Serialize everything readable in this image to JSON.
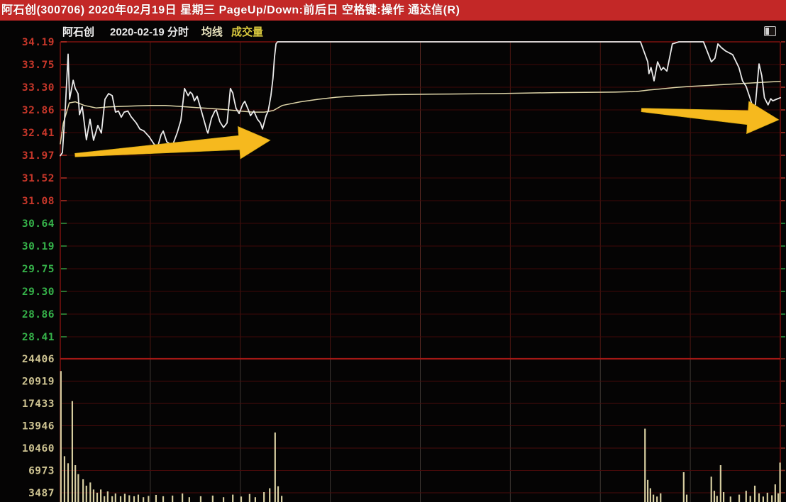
{
  "topbar": {
    "text": "阿石创(300706) 2020年02月19日 星期三 PageUp/Down:前后日 空格键:操作 通达信(R)",
    "bg_color": "#c32827"
  },
  "header": {
    "stock_name": "阿石创",
    "date_and_type": "2020-02-19 分时",
    "indicator_ma": "均线",
    "indicator_vol": "成交量"
  },
  "chart_data": {
    "type": "line",
    "title": "阿石创(300706) 2020-02-19 分时走势",
    "grid": true,
    "x_axis": {
      "minutes_total": 240,
      "gridline_every_minutes": 30
    },
    "price_axis": {
      "ticks": [
        "34.19",
        "33.75",
        "33.30",
        "32.86",
        "32.41",
        "31.97",
        "31.52",
        "31.08",
        "30.64",
        "30.19",
        "29.75",
        "29.30",
        "28.86",
        "28.41"
      ],
      "top_value": 34.19,
      "step": 0.4425,
      "prev_close": 31.08,
      "limit_up": 34.19,
      "color_above": "#c8372a",
      "color_close": "#e6e6e6",
      "color_below": "#36b34a"
    },
    "volume_axis": {
      "ticks": [
        24406,
        20919,
        17433,
        13946,
        10460,
        6973,
        3487
      ],
      "label_color": "#cfc492"
    },
    "series": [
      {
        "name": "price",
        "color": "#eaeaea",
        "points": [
          [
            0,
            31.97
          ],
          [
            0.7,
            32.03
          ],
          [
            1.7,
            32.93
          ],
          [
            2.6,
            33.95
          ],
          [
            3.1,
            33.07
          ],
          [
            4.3,
            33.44
          ],
          [
            5,
            33.28
          ],
          [
            5.9,
            33.18
          ],
          [
            6.4,
            32.77
          ],
          [
            7.3,
            32.93
          ],
          [
            8.7,
            32.28
          ],
          [
            9.9,
            32.68
          ],
          [
            11.1,
            32.27
          ],
          [
            12.5,
            32.56
          ],
          [
            13.7,
            32.41
          ],
          [
            14.9,
            33.07
          ],
          [
            16.1,
            33.18
          ],
          [
            17.3,
            33.14
          ],
          [
            18.4,
            32.82
          ],
          [
            19.4,
            32.84
          ],
          [
            20.3,
            32.72
          ],
          [
            21.3,
            32.82
          ],
          [
            22.5,
            32.84
          ],
          [
            23.6,
            32.73
          ],
          [
            25.3,
            32.61
          ],
          [
            26.5,
            32.49
          ],
          [
            27.9,
            32.45
          ],
          [
            29.6,
            32.34
          ],
          [
            31.2,
            32.2
          ],
          [
            32.4,
            32.13
          ],
          [
            33.6,
            32.38
          ],
          [
            34.3,
            32.45
          ],
          [
            35.5,
            32.24
          ],
          [
            36.6,
            32.2
          ],
          [
            37.4,
            32.17
          ],
          [
            39,
            32.42
          ],
          [
            40.2,
            32.66
          ],
          [
            41.4,
            33.28
          ],
          [
            42.6,
            33.14
          ],
          [
            43.3,
            33.21
          ],
          [
            44,
            33.17
          ],
          [
            44.7,
            33.04
          ],
          [
            45.6,
            33.13
          ],
          [
            46.8,
            32.89
          ],
          [
            47.8,
            32.68
          ],
          [
            48.9,
            32.45
          ],
          [
            49.2,
            32.41
          ],
          [
            50.4,
            32.7
          ],
          [
            51.5,
            32.84
          ],
          [
            52,
            32.86
          ],
          [
            53.2,
            32.63
          ],
          [
            54.4,
            32.52
          ],
          [
            55.6,
            32.61
          ],
          [
            56.3,
            33.03
          ],
          [
            56.7,
            33.28
          ],
          [
            57.5,
            33.19
          ],
          [
            57.9,
            33.07
          ],
          [
            58.6,
            32.89
          ],
          [
            59.6,
            32.79
          ],
          [
            60.8,
            32.97
          ],
          [
            61.5,
            33.03
          ],
          [
            62.7,
            32.86
          ],
          [
            63.4,
            32.75
          ],
          [
            64.5,
            32.84
          ],
          [
            65.7,
            32.68
          ],
          [
            66.7,
            32.61
          ],
          [
            67.4,
            32.49
          ],
          [
            68.6,
            32.75
          ],
          [
            69.3,
            32.84
          ],
          [
            70.2,
            33.14
          ],
          [
            70.9,
            33.48
          ],
          [
            71.4,
            33.9
          ],
          [
            71.9,
            34.15
          ],
          [
            72.4,
            34.19
          ],
          [
            193.4,
            34.19
          ],
          [
            195.8,
            33.8
          ],
          [
            196.2,
            33.57
          ],
          [
            196.9,
            33.69
          ],
          [
            197.9,
            33.43
          ],
          [
            199.1,
            33.8
          ],
          [
            200.3,
            33.64
          ],
          [
            201,
            33.69
          ],
          [
            202.2,
            33.62
          ],
          [
            203.3,
            33.94
          ],
          [
            204,
            34.15
          ],
          [
            206.2,
            34.19
          ],
          [
            214.4,
            34.19
          ],
          [
            215.6,
            34.01
          ],
          [
            217,
            33.8
          ],
          [
            218.2,
            33.87
          ],
          [
            219.2,
            34.15
          ],
          [
            220.3,
            34.08
          ],
          [
            221.8,
            34.01
          ],
          [
            224.1,
            33.94
          ],
          [
            226.2,
            33.69
          ],
          [
            227.4,
            33.43
          ],
          [
            228.6,
            33.32
          ],
          [
            229.8,
            33.11
          ],
          [
            231,
            32.89
          ],
          [
            231.7,
            32.97
          ],
          [
            232.9,
            33.76
          ],
          [
            233.8,
            33.53
          ],
          [
            234.7,
            33.1
          ],
          [
            235.9,
            32.96
          ],
          [
            236.8,
            33.08
          ],
          [
            237.5,
            33.04
          ],
          [
            238.7,
            33.07
          ],
          [
            240,
            33.1
          ]
        ]
      },
      {
        "name": "avg_price_vwap",
        "color": "#ded5a8",
        "points": [
          [
            0,
            32.2
          ],
          [
            1,
            32.6
          ],
          [
            3,
            33
          ],
          [
            5,
            33.02
          ],
          [
            8,
            32.95
          ],
          [
            12,
            32.9
          ],
          [
            16,
            32.92
          ],
          [
            20,
            32.93
          ],
          [
            25,
            32.94
          ],
          [
            30,
            32.95
          ],
          [
            35,
            32.95
          ],
          [
            40,
            32.93
          ],
          [
            45,
            32.91
          ],
          [
            50,
            32.89
          ],
          [
            55,
            32.87
          ],
          [
            60,
            32.84
          ],
          [
            64,
            32.82
          ],
          [
            68,
            32.82
          ],
          [
            71,
            32.85
          ],
          [
            74,
            32.95
          ],
          [
            80,
            33.02
          ],
          [
            86,
            33.07
          ],
          [
            92,
            33.11
          ],
          [
            100,
            33.14
          ],
          [
            110,
            33.16
          ],
          [
            125,
            33.17
          ],
          [
            145,
            33.18
          ],
          [
            165,
            33.2
          ],
          [
            185,
            33.21
          ],
          [
            192,
            33.22
          ],
          [
            196,
            33.25
          ],
          [
            200,
            33.27
          ],
          [
            205,
            33.3
          ],
          [
            210,
            33.32
          ],
          [
            216,
            33.34
          ],
          [
            222,
            33.36
          ],
          [
            228,
            33.38
          ],
          [
            234,
            33.4
          ],
          [
            240,
            33.42
          ]
        ]
      }
    ],
    "volume_bars": {
      "color": "#d6cda0",
      "points": [
        [
          0.2,
          22500
        ],
        [
          1.4,
          9200
        ],
        [
          2.6,
          8100
        ],
        [
          4,
          17800
        ],
        [
          5,
          7800
        ],
        [
          6,
          6400
        ],
        [
          7.6,
          5600
        ],
        [
          8.7,
          4600
        ],
        [
          10,
          5100
        ],
        [
          11.1,
          4000
        ],
        [
          12.3,
          3500
        ],
        [
          13.5,
          4000
        ],
        [
          14.7,
          2950
        ],
        [
          15.8,
          3700
        ],
        [
          17.3,
          2950
        ],
        [
          18.4,
          3380
        ],
        [
          20.1,
          2950
        ],
        [
          21.5,
          3330
        ],
        [
          23,
          3100
        ],
        [
          24.6,
          2950
        ],
        [
          26,
          3200
        ],
        [
          27.7,
          2800
        ],
        [
          29.4,
          3000
        ],
        [
          31.9,
          3160
        ],
        [
          34.3,
          2950
        ],
        [
          37.4,
          3050
        ],
        [
          40.7,
          3380
        ],
        [
          43,
          2800
        ],
        [
          46.8,
          2950
        ],
        [
          50.8,
          3050
        ],
        [
          54.4,
          2800
        ],
        [
          57.5,
          3200
        ],
        [
          60.3,
          2900
        ],
        [
          63.1,
          3300
        ],
        [
          65,
          2800
        ],
        [
          67.9,
          3600
        ],
        [
          69.8,
          4200
        ],
        [
          71.6,
          12900
        ],
        [
          72.6,
          4500
        ],
        [
          73.8,
          3000
        ],
        [
          194.9,
          13500
        ],
        [
          195.8,
          5500
        ],
        [
          196.7,
          4200
        ],
        [
          197.7,
          3200
        ],
        [
          198.9,
          2900
        ],
        [
          200.1,
          3400
        ],
        [
          207.8,
          6700
        ],
        [
          208.8,
          3200
        ],
        [
          217,
          6000
        ],
        [
          218,
          3800
        ],
        [
          218.9,
          3000
        ],
        [
          220.1,
          7800
        ],
        [
          221.1,
          3600
        ],
        [
          223.4,
          2900
        ],
        [
          226.3,
          3200
        ],
        [
          228.6,
          3800
        ],
        [
          230,
          3000
        ],
        [
          231.5,
          4600
        ],
        [
          232.9,
          3400
        ],
        [
          234.3,
          2900
        ],
        [
          235.7,
          3500
        ],
        [
          237.2,
          3100
        ],
        [
          238.3,
          4800
        ],
        [
          239.3,
          3400
        ],
        [
          239.9,
          8200
        ]
      ]
    },
    "annotations": [
      {
        "type": "arrow",
        "color": "#f6b91e",
        "from": {
          "minute": 4.9,
          "price": 31.98
        },
        "to": {
          "minute": 70,
          "price": 32.27
        }
      },
      {
        "type": "arrow",
        "color": "#f6b91e",
        "from": {
          "minute": 193.7,
          "price": 32.86
        },
        "to": {
          "minute": 239.5,
          "price": 32.67
        }
      }
    ]
  },
  "colors": {
    "grid_dark_red": "#3f0909",
    "grid_vol_red": "#4a0b0b",
    "grid_vertical": "#4c1712",
    "grid_vertical_vol": "#6e6258",
    "prev_close_line": "#8c1613",
    "border_red": "#7d120f",
    "separator_red": "#a31815"
  }
}
